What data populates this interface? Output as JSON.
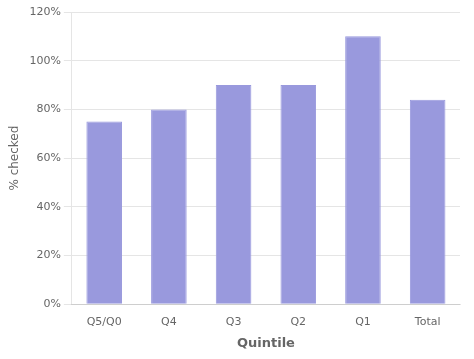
{
  "chart_data": {
    "type": "bar",
    "categories": [
      "Q5/Q0",
      "Q4",
      "Q3",
      "Q2",
      "Q1",
      "Total"
    ],
    "values": [
      0.75,
      0.8,
      0.9,
      0.9,
      1.1,
      0.84
    ],
    "color": "#9999DD",
    "xlabel": "Quintile",
    "ylabel": "% checked",
    "ylim": [
      0,
      1.2
    ],
    "yticks": [
      {
        "value": 0.0,
        "label": "0%"
      },
      {
        "value": 0.2,
        "label": "20%"
      },
      {
        "value": 0.4,
        "label": "40%"
      },
      {
        "value": 0.6,
        "label": "60%"
      },
      {
        "value": 0.8,
        "label": "80%"
      },
      {
        "value": 1.0,
        "label": "100%"
      },
      {
        "value": 1.2,
        "label": "120%"
      }
    ],
    "grid": true
  }
}
